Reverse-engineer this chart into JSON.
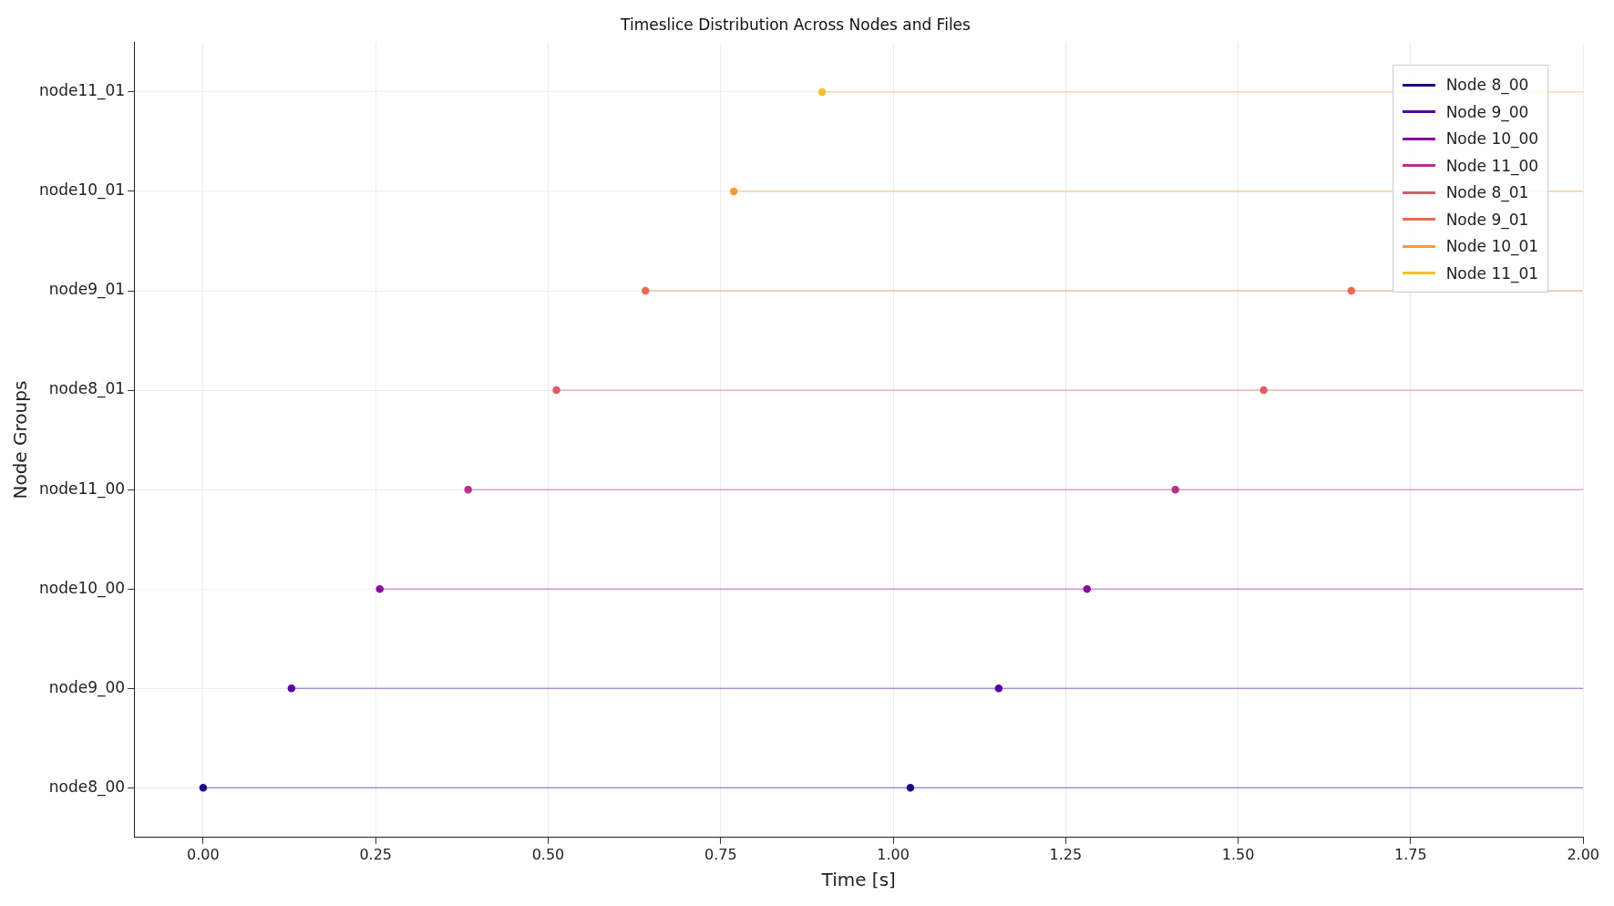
{
  "chart_data": {
    "type": "line",
    "orientation": "horizontal",
    "title": "Timeslice Distribution Across Nodes and Files",
    "xlabel": "Time [s]",
    "ylabel": "Node Groups",
    "categories": [
      "node11_01",
      "node10_01",
      "node9_01",
      "node8_01",
      "node11_00",
      "node10_00",
      "node9_00",
      "node8_00"
    ],
    "xlim": [
      -0.1,
      2.0
    ],
    "xticks": [
      {
        "value": 0,
        "label": "0.00"
      },
      {
        "value": 0.25,
        "label": "0.25"
      },
      {
        "value": 0.5,
        "label": "0.50"
      },
      {
        "value": 0.75,
        "label": "0.75"
      },
      {
        "value": 1,
        "label": "1.00"
      },
      {
        "value": 1.25,
        "label": "1.25"
      },
      {
        "value": 1.5,
        "label": "1.50"
      },
      {
        "value": 1.75,
        "label": "1.75"
      },
      {
        "value": 2,
        "label": "2.00"
      }
    ],
    "grid": true,
    "legend": "top right",
    "marker": "circle",
    "line_style": "solid",
    "series": [
      {
        "name": "Node 8_00",
        "color": "#1b0c82",
        "x": [
          "node8_00",
          "node8_00",
          "node8_00"
        ],
        "values": [
          0,
          1.025,
          2.0
        ]
      },
      {
        "name": "Node 9_00",
        "color": "#5302a3",
        "x": [
          "node9_00",
          "node9_00",
          "node9_00"
        ],
        "values": [
          0.128,
          1.153,
          2.0
        ]
      },
      {
        "name": "Node 10_00",
        "color": "#8b0aa5",
        "x": [
          "node10_00",
          "node10_00",
          "node10_00"
        ],
        "values": [
          0.256,
          1.281,
          2.0
        ]
      },
      {
        "name": "Node 11_00",
        "color": "#b83289",
        "x": [
          "node11_00",
          "node11_00",
          "node11_00"
        ],
        "values": [
          0.384,
          1.409,
          2.0
        ]
      },
      {
        "name": "Node 8_01",
        "color": "#db5c68",
        "x": [
          "node8_01",
          "node8_01",
          "node8_01"
        ],
        "values": [
          0.512,
          1.537,
          2.0
        ]
      },
      {
        "name": "Node 9_01",
        "color": "#ec6a4e",
        "x": [
          "node9_01",
          "node9_01",
          "node9_01"
        ],
        "values": [
          0.641,
          1.664,
          2.0
        ]
      },
      {
        "name": "Node 10_01",
        "color": "#f89a3a",
        "x": [
          "node10_01",
          "node10_01"
        ],
        "values": [
          0.769,
          2.0
        ]
      },
      {
        "name": "Node 11_01",
        "color": "#f5c030",
        "x": [
          "node11_01",
          "node11_01"
        ],
        "values": [
          0.897,
          2.0
        ]
      }
    ]
  }
}
